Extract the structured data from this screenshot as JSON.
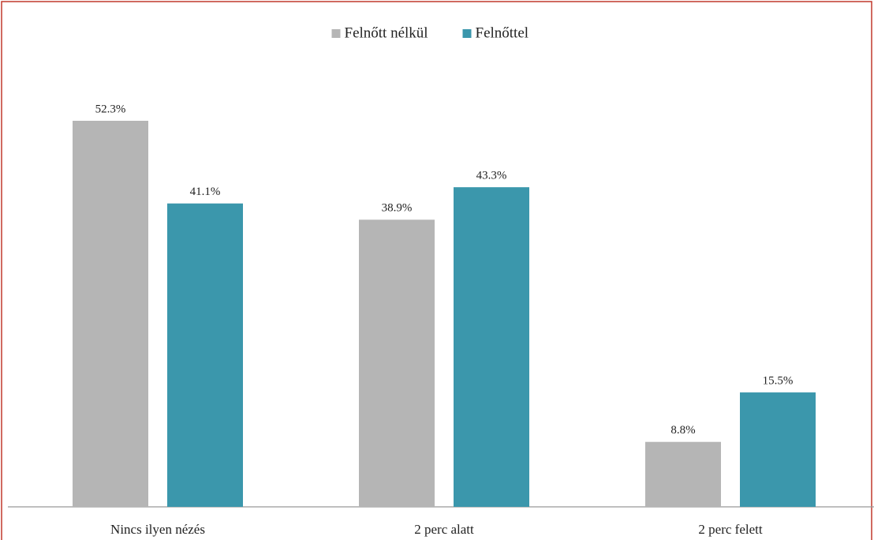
{
  "chart_data": {
    "type": "bar",
    "categories": [
      "Nincs ilyen nézés",
      "2 perc alatt",
      "2 perc felett"
    ],
    "series": [
      {
        "name": "Felnőtt nélkül",
        "color": "#b5b5b5",
        "values": [
          52.3,
          38.9,
          8.8
        ],
        "value_labels": [
          "52.3%",
          "38.9%",
          "8.8%"
        ]
      },
      {
        "name": "Felnőttel",
        "color": "#3b97ac",
        "values": [
          41.1,
          43.3,
          15.5
        ],
        "value_labels": [
          "41.1%",
          "43.3%",
          "15.5%"
        ]
      }
    ],
    "legend": "top"
  }
}
